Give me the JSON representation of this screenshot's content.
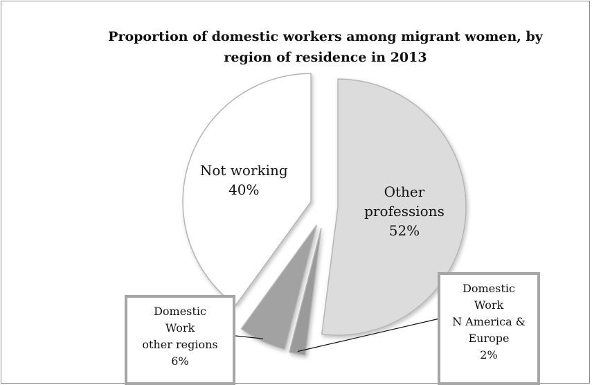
{
  "chart_data": {
    "type": "pie",
    "title": "Proportion of domestic workers among migrant women, by region of residence in 2013",
    "slices": [
      {
        "label": "Other professions",
        "label_lines": [
          "Other",
          "professions",
          "52%"
        ],
        "value": 52,
        "color": "#dcdcdc"
      },
      {
        "label": "Domestic Work N America & Europe",
        "label_lines": [
          "Domestic",
          "Work",
          "N America &",
          "Europe",
          "2%"
        ],
        "value": 2,
        "color": "#9a9a9a"
      },
      {
        "label": "Domestic Work other regions",
        "label_lines": [
          "Domestic",
          "Work",
          "other regions",
          "6%"
        ],
        "value": 6,
        "color": "#a2a2a2"
      },
      {
        "label": "Not working",
        "label_lines": [
          "Not working",
          "40%"
        ],
        "value": 40,
        "color": "#ffffff"
      }
    ]
  }
}
